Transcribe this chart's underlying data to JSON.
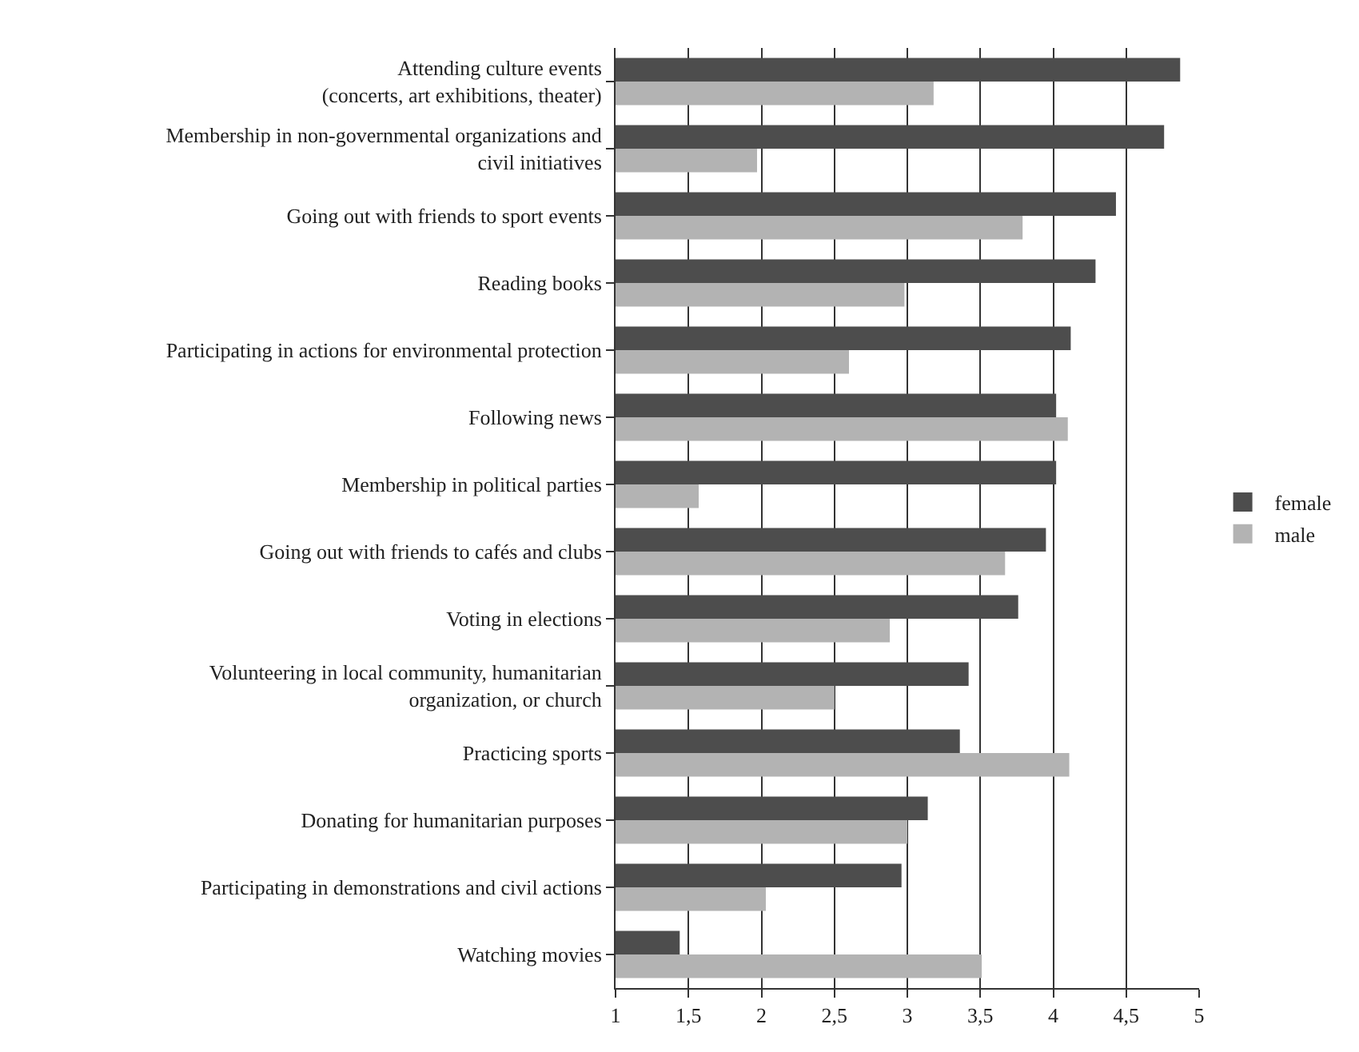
{
  "chart_data": {
    "type": "bar",
    "orientation": "horizontal",
    "categories": [
      "Attending culture events\n(concerts, art exhibitions, theater)",
      "Membership in non-governmental organizations and\ncivil initiatives",
      "Going out with friends to sport events",
      "Reading books",
      "Participating in actions for environmental protection",
      "Following news",
      "Membership in political parties",
      "Going out with friends to cafés and clubs",
      "Voting in elections",
      "Volunteering in local community, humanitarian\norganization, or church",
      "Practicing sports",
      "Donating for humanitarian purposes",
      "Participating in demonstrations and civil actions",
      "Watching movies"
    ],
    "series": [
      {
        "name": "female",
        "color": "#4d4d4d",
        "values": [
          4.87,
          4.76,
          4.43,
          4.29,
          4.12,
          4.02,
          4.02,
          3.95,
          3.76,
          3.42,
          3.36,
          3.14,
          2.96,
          1.44
        ]
      },
      {
        "name": "male",
        "color": "#b3b3b3",
        "values": [
          3.18,
          1.97,
          3.79,
          2.98,
          2.6,
          4.1,
          1.57,
          3.67,
          2.88,
          2.5,
          4.11,
          3.0,
          2.03,
          3.51
        ]
      }
    ],
    "xlim": [
      1,
      5
    ],
    "xticks": [
      {
        "value": 1,
        "label": "1"
      },
      {
        "value": 1.5,
        "label": "1,5"
      },
      {
        "value": 2,
        "label": "2"
      },
      {
        "value": 2.5,
        "label": "2,5"
      },
      {
        "value": 3,
        "label": "3"
      },
      {
        "value": 3.5,
        "label": "3,5"
      },
      {
        "value": 4,
        "label": "4"
      },
      {
        "value": 4.5,
        "label": "4,5"
      },
      {
        "value": 5,
        "label": "5"
      }
    ],
    "grid": "x",
    "legend": "right"
  }
}
